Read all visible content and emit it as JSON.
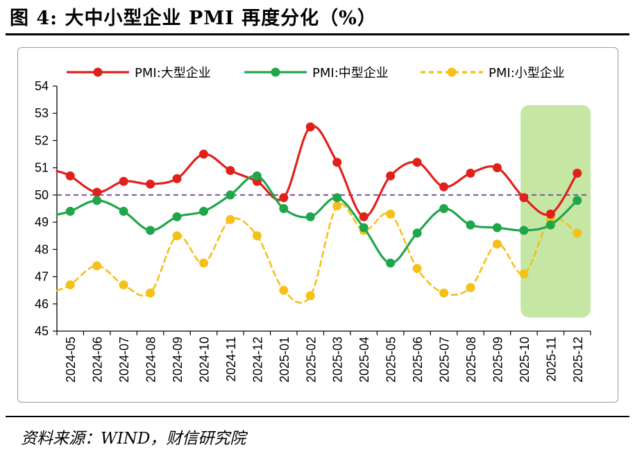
{
  "header": {
    "title": "图 4:   大中小型企业 PMI 再度分化（%）"
  },
  "footer": {
    "source": "资料来源：WIND，财信研究院"
  },
  "chart_data": {
    "type": "line",
    "categories": [
      "2024-05",
      "2024-06",
      "2024-07",
      "2024-08",
      "2024-09",
      "2024-10",
      "2024-11",
      "2024-12",
      "2025-01",
      "2025-02",
      "2025-03",
      "2025-04",
      "2025-05",
      "2025-06",
      "2025-07",
      "2025-08",
      "2025-09",
      "2025-10",
      "2025-11",
      "2025-12"
    ],
    "series": [
      {
        "name": "PMI:大型企业",
        "color": "#e0201b",
        "dash": false,
        "values": [
          50.7,
          50.1,
          50.5,
          50.4,
          50.6,
          51.5,
          50.9,
          50.5,
          49.9,
          52.5,
          51.2,
          49.2,
          50.7,
          51.2,
          50.3,
          50.8,
          51.0,
          49.9,
          49.3,
          50.8
        ]
      },
      {
        "name": "PMI:中型企业",
        "color": "#1fa64a",
        "dash": false,
        "values": [
          49.4,
          49.8,
          49.4,
          48.7,
          49.2,
          49.4,
          50.0,
          50.7,
          49.5,
          49.2,
          49.9,
          48.8,
          47.5,
          48.6,
          49.5,
          48.9,
          48.8,
          48.7,
          48.9,
          49.8
        ]
      },
      {
        "name": "PMI:小型企业",
        "color": "#f5c018",
        "dash": true,
        "values": [
          46.7,
          47.4,
          46.7,
          46.4,
          48.5,
          47.5,
          49.1,
          48.5,
          46.5,
          46.3,
          49.6,
          48.7,
          49.3,
          47.3,
          46.4,
          46.6,
          48.2,
          47.1,
          49.1,
          48.6
        ]
      }
    ],
    "reference_line": {
      "value": 50,
      "color": "#8064a2"
    },
    "highlight": {
      "from": "2025-10",
      "to": "2025-12",
      "color": "#c6e6a4"
    },
    "ylim": [
      45,
      54
    ],
    "yticks": [
      45,
      46,
      47,
      48,
      49,
      50,
      51,
      52,
      53,
      54
    ],
    "legend_position": "top"
  }
}
